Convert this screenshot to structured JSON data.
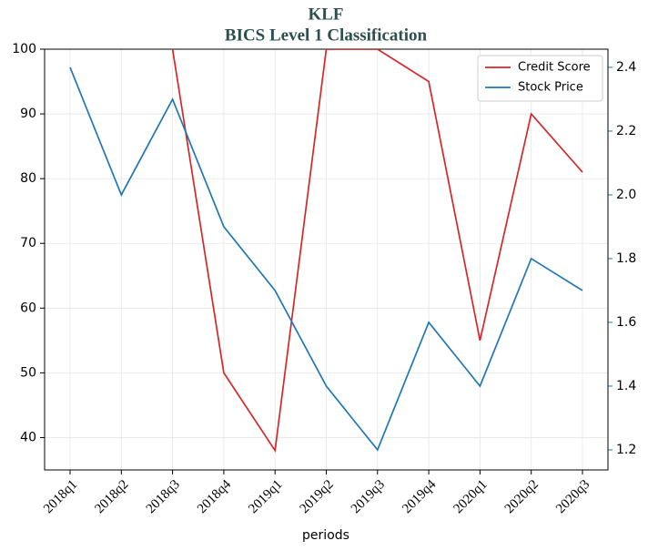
{
  "chart_data": {
    "type": "line",
    "title": "KLF",
    "subtitle": "BICS Level 1 Classification",
    "xlabel": "periods",
    "categories": [
      "2018q1",
      "2018q2",
      "2018q3",
      "2018q4",
      "2019q1",
      "2019q2",
      "2019q3",
      "2019q4",
      "2020q1",
      "2020q2",
      "2020q3"
    ],
    "series": [
      {
        "name": "Credit Score",
        "color": "#d62728",
        "axis": "y",
        "values": [
          null,
          null,
          100,
          50,
          38,
          100,
          100,
          95,
          55,
          90,
          81
        ]
      },
      {
        "name": "Stock Price",
        "color": "#1f77b4",
        "axis": "y2",
        "values": [
          2.4,
          2.0,
          2.3,
          1.9,
          1.7,
          1.4,
          1.2,
          1.6,
          1.4,
          1.8,
          1.7
        ]
      }
    ],
    "ylim": [
      35,
      100
    ],
    "yticks": [
      40,
      50,
      60,
      70,
      80,
      90,
      100
    ],
    "y2lim": [
      1.137,
      2.457
    ],
    "y2ticks": [
      1.2,
      1.4,
      1.6,
      1.8,
      {
        "value": 2,
        "label": "2.0"
      },
      2.2,
      2.4
    ],
    "grid": true,
    "legend": "upper right"
  }
}
